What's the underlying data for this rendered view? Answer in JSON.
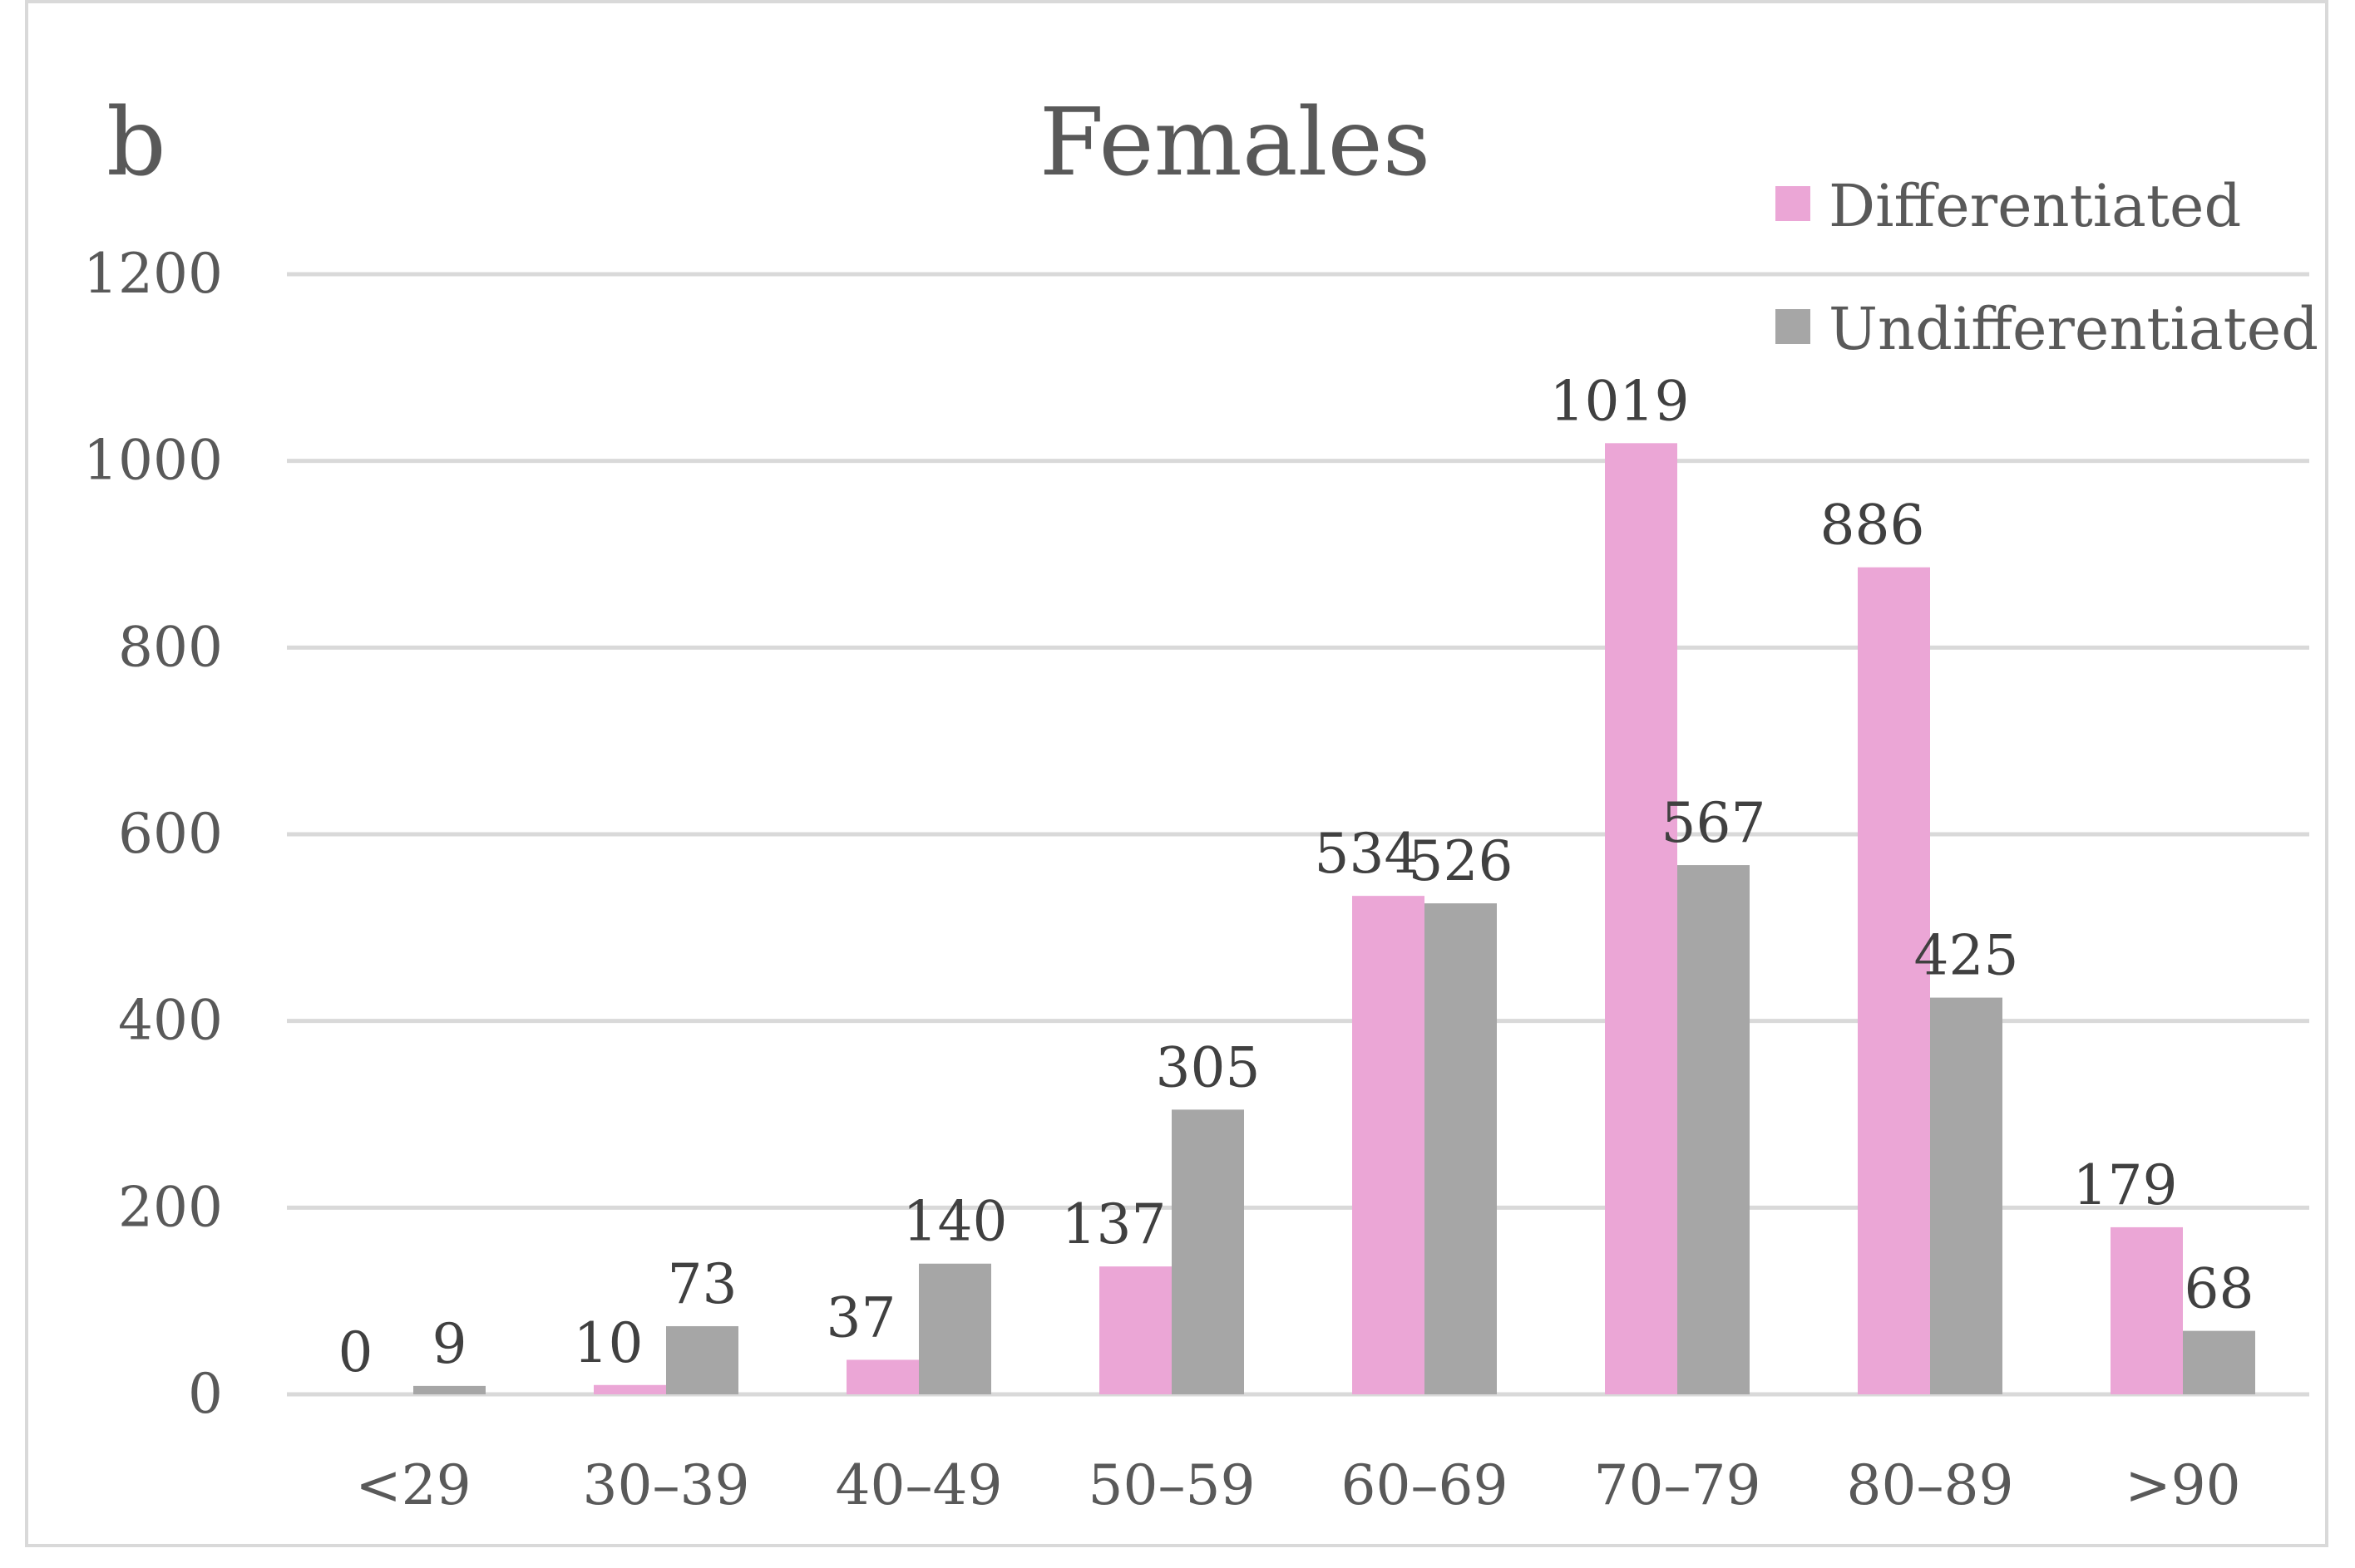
{
  "panel_label": "b",
  "chart_data": {
    "type": "bar",
    "title": "Females",
    "categories": [
      "<29",
      "30–39",
      "40–49",
      "50–59",
      "60–69",
      "70–79",
      "80–89",
      ">90"
    ],
    "series": [
      {
        "name": "Differentiated",
        "color": "#eba6d6",
        "values": [
          0,
          10,
          37,
          137,
          534,
          1019,
          886,
          179
        ]
      },
      {
        "name": "Undifferentiated",
        "color": "#a6a6a6",
        "values": [
          9,
          73,
          140,
          305,
          526,
          567,
          425,
          68
        ]
      }
    ],
    "ylim": [
      0,
      1200
    ],
    "yticks": [
      0,
      200,
      400,
      600,
      800,
      1000,
      1200
    ],
    "xlabel": "",
    "ylabel": "",
    "grid": true,
    "legend_position": "top-right"
  }
}
